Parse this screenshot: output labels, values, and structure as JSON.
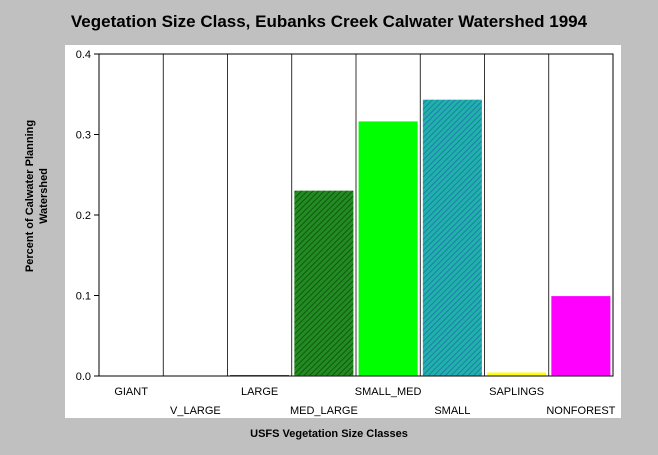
{
  "chart_data": {
    "type": "bar",
    "title": "Vegetation Size Class, Eubanks Creek Calwater Watershed 1994",
    "xlabel": "USFS Vegetation Size Classes",
    "ylabel": "Percent of Calwater Planning Watershed",
    "categories": [
      "GIANT",
      "V_LARGE",
      "LARGE",
      "MED_LARGE",
      "SMALL_MED",
      "SMALL",
      "SAPLINGS",
      "NONFOREST"
    ],
    "values": [
      0,
      0,
      0.002,
      0.231,
      0.317,
      0.344,
      0.005,
      0.1
    ],
    "colors": [
      "#008000",
      "#008000",
      "#006400",
      "#228b22",
      "#00ff00",
      "#20b2aa",
      "#ffff00",
      "#ff00ff"
    ],
    "ylim": [
      0,
      0.4
    ],
    "yticks": [
      "0.0",
      "0.1",
      "0.2",
      "0.3",
      "0.4"
    ],
    "grid": "vertical"
  }
}
